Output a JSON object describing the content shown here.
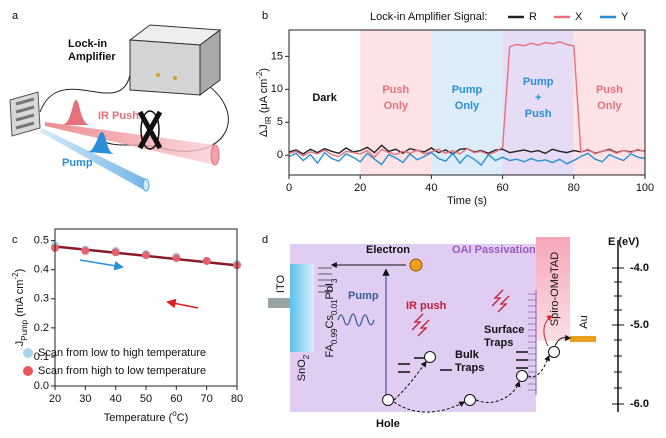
{
  "panel_labels": [
    "a",
    "b",
    "c",
    "d"
  ],
  "chart_data": [
    {
      "type": "line",
      "legend_title": "Lock-in Amplifier Signal:",
      "legend_loc": "top",
      "x_label": "Time (s)",
      "y_label": [
        {
          "t": "ΔJ"
        },
        {
          "t": "IR",
          "sub": true
        },
        {
          "t": " (μA cm"
        },
        {
          "t": "-2",
          "sup": true
        },
        {
          "t": ")"
        }
      ],
      "xlim": [
        0,
        100
      ],
      "xticks": [
        0,
        20,
        40,
        60,
        80,
        100
      ],
      "ylim": [
        -3,
        19
      ],
      "yticks": [
        0,
        5,
        10,
        15
      ],
      "regions": [
        {
          "label": [
            "Dark"
          ],
          "start": 0,
          "end": 20,
          "text_color": "#111111"
        },
        {
          "label": [
            "Push",
            "Only"
          ],
          "start": 20,
          "end": 40,
          "color": "#fde3e6",
          "text_color": "#e8707a"
        },
        {
          "label": [
            "Pump",
            "Only"
          ],
          "start": 40,
          "end": 60,
          "color": "#dcecf8",
          "text_color": "#2a8fd6"
        },
        {
          "label": [
            "Pump",
            "+",
            "Push"
          ],
          "start": 60,
          "end": 80,
          "color": "#e6dcf6",
          "text_color": "#2a8fd6"
        },
        {
          "label": [
            "Push",
            "Only"
          ],
          "start": 80,
          "end": 100,
          "color": "#fde3e6",
          "text_color": "#e8707a"
        }
      ],
      "x": [
        0,
        2,
        4,
        6,
        8,
        10,
        12,
        14,
        16,
        18,
        20,
        22,
        24,
        26,
        28,
        30,
        32,
        34,
        36,
        38,
        40,
        42,
        44,
        46,
        48,
        50,
        52,
        54,
        56,
        58,
        60,
        62,
        64,
        66,
        68,
        70,
        72,
        74,
        76,
        78,
        80,
        82,
        84,
        86,
        88,
        90,
        92,
        94,
        96,
        98,
        100
      ],
      "series": [
        {
          "name": "R",
          "color": "#222222",
          "values": [
            0.5,
            0.8,
            0.2,
            0.9,
            0.4,
            1.0,
            0.6,
            0.3,
            1.1,
            0.5,
            0.7,
            1.2,
            0.4,
            1.5,
            0.6,
            0.9,
            0.3,
            1.0,
            0.7,
            0.5,
            1.1,
            0.4,
            0.8,
            0.2,
            0.9,
            1.0,
            0.5,
            0.7,
            0.3,
            0.8,
            0.9,
            0.4,
            0.6,
            0.8,
            0.5,
            0.7,
            0.3,
            0.9,
            0.6,
            0.4,
            0.7,
            0.5,
            0.8,
            0.3,
            0.6,
            0.9,
            0.4,
            0.7,
            0.5,
            0.8,
            0.6
          ]
        },
        {
          "name": "X",
          "color": "#e8707a",
          "values": [
            0.3,
            0.6,
            -0.1,
            0.5,
            0.2,
            0.8,
            0.1,
            -0.2,
            0.6,
            0.4,
            0.2,
            0.7,
            -0.3,
            0.9,
            0.4,
            0.1,
            0.6,
            0.3,
            0.8,
            0.2,
            0.5,
            0.9,
            0.3,
            0.7,
            0.2,
            1.0,
            0.4,
            0.6,
            0.1,
            0.5,
            1.2,
            16.5,
            16.8,
            16.6,
            17.0,
            16.7,
            17.1,
            16.9,
            17.2,
            16.8,
            16.6,
            0.5,
            0.9,
            0.2,
            0.6,
            0.8,
            0.3,
            0.7,
            0.4,
            0.9,
            0.5
          ]
        },
        {
          "name": "Y",
          "color": "#2a8fd6",
          "values": [
            -0.2,
            0.3,
            -0.8,
            0.1,
            -1.2,
            0.4,
            -0.5,
            -0.9,
            0.2,
            -0.3,
            -1.0,
            0.3,
            -0.6,
            -1.4,
            0.1,
            -0.4,
            -1.1,
            0.2,
            -0.7,
            -0.2,
            0.4,
            -0.5,
            -0.9,
            0.3,
            -1.2,
            0.0,
            -0.6,
            -1.5,
            0.1,
            -0.8,
            -0.3,
            -0.8,
            -0.6,
            -1.0,
            -0.5,
            -0.9,
            -0.7,
            -1.1,
            -0.6,
            -1.3,
            -0.8,
            -0.2,
            0.3,
            -0.6,
            -1.0,
            0.1,
            -0.4,
            -0.8,
            0.2,
            -0.3,
            -0.5
          ]
        }
      ]
    },
    {
      "type": "scatter",
      "legend_loc": "lower left",
      "x_label": [
        {
          "t": "Temperature ("
        },
        {
          "t": "o",
          "sup": true
        },
        {
          "t": "C)"
        }
      ],
      "y_label": [
        {
          "t": "J"
        },
        {
          "t": "Pump",
          "sub": true
        },
        {
          "t": " (mA cm"
        },
        {
          "t": "-2",
          "sup": true
        },
        {
          "t": ")"
        }
      ],
      "xlim": [
        20,
        80
      ],
      "xticks": [
        20,
        30,
        40,
        50,
        60,
        70,
        80
      ],
      "ylim": [
        0,
        0.54
      ],
      "yticks": [
        {
          "value": 0,
          "label": "0.0"
        },
        0.1,
        0.2,
        0.3,
        0.4,
        0.5
      ],
      "x": [
        20,
        30,
        40,
        50,
        60,
        70,
        80
      ],
      "series": [
        {
          "name": "Scan from low to high temperature",
          "color": "#a8d4f0",
          "values": [
            0.485,
            0.47,
            0.465,
            0.455,
            0.445,
            0.43,
            0.42
          ]
        },
        {
          "name": "Scan from high to low temperature",
          "color": "#e8585f",
          "values": [
            0.475,
            0.465,
            0.46,
            0.45,
            0.44,
            0.43,
            0.415
          ]
        }
      ],
      "fit_line": {
        "color": "#8b1a2a",
        "x": [
          20,
          80
        ],
        "values": [
          0.48,
          0.415
        ]
      }
    }
  ],
  "diagram_a": {
    "lock_in_label": [
      "Lock-in",
      "Amplifier"
    ],
    "ir_push_label": "IR Push",
    "pump_label": "Pump"
  },
  "diagram_d": {
    "energy_axis_label": "E (eV)",
    "energy_levels": [
      "-4.0",
      "-5.0",
      "-6.0"
    ],
    "electron": "Electron",
    "hole": "Hole",
    "oai": "OAI Passivation",
    "ito": "ITO",
    "sno2": [
      {
        "t": "SnO"
      },
      {
        "t": "2",
        "sub": true
      }
    ],
    "perovskite": [
      {
        "t": "FA"
      },
      {
        "t": "0.99",
        "sub": true
      },
      {
        "t": "Cs"
      },
      {
        "t": "0.01",
        "sub": true
      },
      {
        "t": "PbI"
      },
      {
        "t": "3",
        "sub": true
      }
    ],
    "pump": "Pump",
    "ir_push": "IR push",
    "bulk_traps": [
      "Bulk",
      "Traps"
    ],
    "surface_traps": [
      "Surface",
      "Traps"
    ],
    "spiro": "Spiro-OMeTAD",
    "au": "Au"
  }
}
